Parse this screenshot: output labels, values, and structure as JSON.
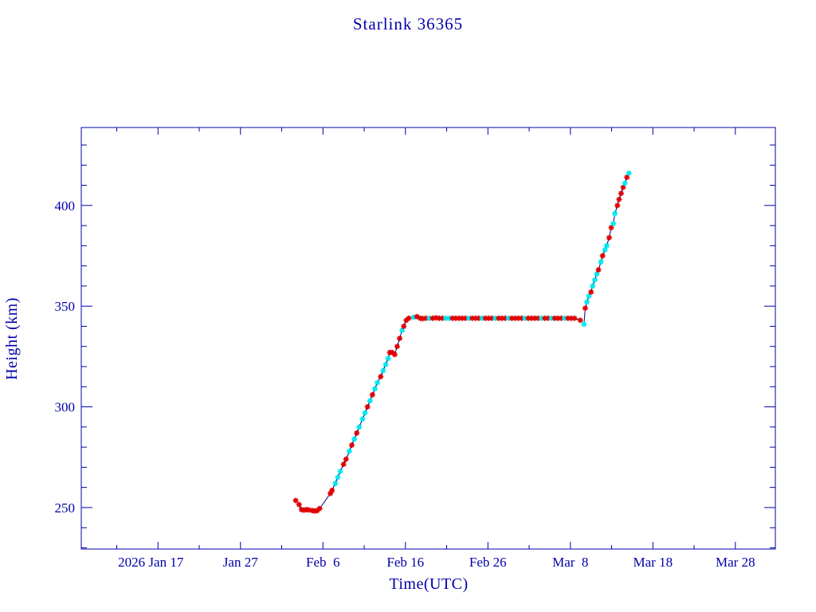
{
  "chart_data": {
    "type": "scatter",
    "title": "Starlink 36365",
    "xlabel": "Time(UTC)",
    "ylabel": "Height (km)",
    "x_units": "days since 2026 Jan 1 (0 = Jan 1)",
    "xlim": [
      6.7,
      90.85
    ],
    "ylim": [
      229.4,
      438.7
    ],
    "x_major_ticks": [
      {
        "day": 16,
        "label": "2026 Jan 17"
      },
      {
        "day": 26,
        "label": "Jan 27"
      },
      {
        "day": 36,
        "label": "Feb  6"
      },
      {
        "day": 46,
        "label": "Feb 16"
      },
      {
        "day": 56,
        "label": "Feb 26"
      },
      {
        "day": 66,
        "label": "Mar  8"
      },
      {
        "day": 76,
        "label": "Mar 18"
      },
      {
        "day": 86,
        "label": "Mar 28"
      }
    ],
    "x_minor_step_days": 5,
    "y_major_ticks": [
      {
        "value": 250,
        "label": "250"
      },
      {
        "value": 300,
        "label": "300"
      },
      {
        "value": 350,
        "label": "350"
      },
      {
        "value": 400,
        "label": "400"
      }
    ],
    "y_minor_step": 10,
    "grid": false,
    "colors": {
      "axis": "#0000a8",
      "line": "#00008b",
      "red": "#e00000",
      "cyan": "#00e8f0"
    },
    "series": [
      {
        "name": "height",
        "points": [
          [
            32.7,
            253.5,
            "r"
          ],
          [
            33.1,
            251.5,
            "r"
          ],
          [
            33.4,
            249,
            "r"
          ],
          [
            33.7,
            248.7,
            "r"
          ],
          [
            34.0,
            249,
            "r"
          ],
          [
            34.3,
            248.8,
            "r"
          ],
          [
            34.7,
            248.5,
            "r"
          ],
          [
            35.0,
            248.3,
            "r"
          ],
          [
            35.3,
            248.5,
            "r"
          ],
          [
            35.6,
            249.5,
            "r"
          ],
          [
            36.9,
            257,
            "r"
          ],
          [
            37.1,
            258.5,
            "r"
          ],
          [
            37.5,
            262,
            "c"
          ],
          [
            37.8,
            265,
            "c"
          ],
          [
            38.1,
            268,
            "c"
          ],
          [
            38.5,
            271.5,
            "r"
          ],
          [
            38.8,
            274,
            "r"
          ],
          [
            39.2,
            278,
            "c"
          ],
          [
            39.5,
            281,
            "r"
          ],
          [
            39.8,
            284,
            "c"
          ],
          [
            40.1,
            287,
            "r"
          ],
          [
            40.4,
            290,
            "c"
          ],
          [
            40.8,
            294,
            "c"
          ],
          [
            41.1,
            297,
            "c"
          ],
          [
            41.4,
            300,
            "r"
          ],
          [
            41.7,
            303,
            "c"
          ],
          [
            42.0,
            306,
            "r"
          ],
          [
            42.3,
            309,
            "c"
          ],
          [
            42.6,
            312,
            "c"
          ],
          [
            43.0,
            315,
            "r"
          ],
          [
            43.3,
            318,
            "c"
          ],
          [
            43.6,
            321,
            "c"
          ],
          [
            43.9,
            324,
            "c"
          ],
          [
            44.1,
            327,
            "r"
          ],
          [
            44.4,
            327,
            "r"
          ],
          [
            44.7,
            326,
            "r"
          ],
          [
            45.0,
            330,
            "r"
          ],
          [
            45.3,
            334,
            "r"
          ],
          [
            45.6,
            338,
            "c"
          ],
          [
            45.8,
            340,
            "r"
          ],
          [
            46.1,
            343,
            "r"
          ],
          [
            46.4,
            344,
            "r"
          ],
          [
            47.0,
            344.5,
            "c"
          ],
          [
            47.4,
            344.8,
            "r"
          ],
          [
            47.8,
            344,
            "r"
          ],
          [
            48.1,
            343.8,
            "r"
          ],
          [
            48.5,
            344,
            "r"
          ],
          [
            48.9,
            344,
            "c"
          ],
          [
            49.3,
            344,
            "r"
          ],
          [
            49.7,
            344.2,
            "r"
          ],
          [
            50.1,
            344,
            "r"
          ],
          [
            50.5,
            344,
            "r"
          ],
          [
            50.9,
            344,
            "c"
          ],
          [
            51.3,
            344,
            "c"
          ],
          [
            51.7,
            344,
            "r"
          ],
          [
            52.1,
            344,
            "r"
          ],
          [
            52.5,
            344,
            "r"
          ],
          [
            52.9,
            344,
            "r"
          ],
          [
            53.3,
            344,
            "r"
          ],
          [
            53.7,
            344,
            "c"
          ],
          [
            54.1,
            344,
            "r"
          ],
          [
            54.5,
            344,
            "r"
          ],
          [
            54.9,
            344,
            "r"
          ],
          [
            55.3,
            344,
            "c"
          ],
          [
            55.7,
            344,
            "r"
          ],
          [
            56.1,
            344,
            "r"
          ],
          [
            56.5,
            344,
            "r"
          ],
          [
            56.9,
            344,
            "c"
          ],
          [
            57.3,
            344,
            "r"
          ],
          [
            57.7,
            344,
            "r"
          ],
          [
            58.1,
            344,
            "r"
          ],
          [
            58.5,
            344,
            "c"
          ],
          [
            58.9,
            344,
            "r"
          ],
          [
            59.3,
            344,
            "r"
          ],
          [
            59.7,
            344,
            "r"
          ],
          [
            60.1,
            344,
            "r"
          ],
          [
            60.5,
            344,
            "c"
          ],
          [
            60.9,
            344,
            "r"
          ],
          [
            61.3,
            344,
            "r"
          ],
          [
            61.7,
            344,
            "r"
          ],
          [
            62.1,
            344,
            "r"
          ],
          [
            62.5,
            344,
            "c"
          ],
          [
            62.9,
            344,
            "r"
          ],
          [
            63.3,
            344,
            "r"
          ],
          [
            63.7,
            344,
            "c"
          ],
          [
            64.1,
            344,
            "r"
          ],
          [
            64.5,
            344,
            "r"
          ],
          [
            64.9,
            344,
            "r"
          ],
          [
            65.3,
            344,
            "c"
          ],
          [
            65.7,
            344,
            "r"
          ],
          [
            66.1,
            344,
            "r"
          ],
          [
            66.5,
            344,
            "r"
          ],
          [
            67.2,
            343,
            "r"
          ],
          [
            67.65,
            341,
            "c"
          ],
          [
            67.8,
            349,
            "r"
          ],
          [
            68.0,
            352,
            "c"
          ],
          [
            68.25,
            355,
            "c"
          ],
          [
            68.5,
            357,
            "r"
          ],
          [
            68.7,
            360,
            "c"
          ],
          [
            68.95,
            363,
            "c"
          ],
          [
            69.2,
            366,
            "c"
          ],
          [
            69.4,
            368,
            "r"
          ],
          [
            69.7,
            372,
            "c"
          ],
          [
            69.9,
            375,
            "r"
          ],
          [
            70.2,
            378,
            "c"
          ],
          [
            70.4,
            380,
            "c"
          ],
          [
            70.7,
            384,
            "r"
          ],
          [
            70.95,
            389,
            "r"
          ],
          [
            71.2,
            391,
            "c"
          ],
          [
            71.4,
            396,
            "c"
          ],
          [
            71.7,
            400,
            "r"
          ],
          [
            71.9,
            403,
            "r"
          ],
          [
            72.15,
            406,
            "r"
          ],
          [
            72.4,
            409,
            "r"
          ],
          [
            72.6,
            411,
            "c"
          ],
          [
            72.85,
            414,
            "r"
          ],
          [
            73.1,
            416,
            "c"
          ]
        ]
      }
    ]
  }
}
